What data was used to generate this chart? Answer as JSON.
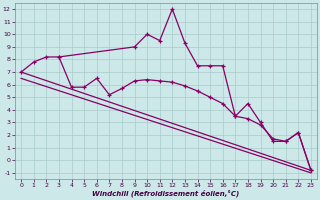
{
  "xlabel": "Windchill (Refroidissement éolien,°C)",
  "background_color": "#cde8e8",
  "grid_color": "#aacccc",
  "line_color": "#880066",
  "xlim": [
    -0.5,
    23.5
  ],
  "ylim": [
    -1.5,
    12.5
  ],
  "yticks": [
    -1,
    0,
    1,
    2,
    3,
    4,
    5,
    6,
    7,
    8,
    9,
    10,
    11,
    12
  ],
  "xticks": [
    0,
    1,
    2,
    3,
    4,
    5,
    6,
    7,
    8,
    9,
    10,
    11,
    12,
    13,
    14,
    15,
    16,
    17,
    18,
    19,
    20,
    21,
    22,
    23
  ],
  "line1_x": [
    0,
    1,
    2,
    3,
    9,
    10,
    11,
    12,
    13,
    14,
    15,
    16,
    17,
    18,
    19,
    20,
    21,
    22,
    23
  ],
  "line1_y": [
    7.0,
    7.8,
    8.2,
    8.2,
    9.0,
    10.0,
    9.5,
    12.0,
    9.3,
    7.5,
    7.5,
    7.5,
    3.5,
    4.5,
    3.0,
    1.5,
    1.5,
    2.2,
    -0.8
  ],
  "line2_x": [
    0,
    23
  ],
  "line2_y": [
    7.0,
    -0.8
  ],
  "line3_x": [
    3,
    4,
    5,
    6,
    7,
    8,
    9,
    10,
    11,
    12,
    13,
    14,
    15,
    16,
    17,
    18,
    19,
    20,
    21,
    22,
    23
  ],
  "line3_y": [
    8.2,
    5.8,
    5.8,
    6.5,
    5.2,
    5.7,
    6.3,
    6.4,
    6.3,
    6.2,
    5.9,
    5.5,
    5.0,
    4.5,
    3.5,
    3.3,
    2.8,
    1.7,
    1.5,
    2.2,
    -0.8
  ],
  "line4_x": [
    0,
    23
  ],
  "line4_y": [
    6.5,
    -1.0
  ]
}
